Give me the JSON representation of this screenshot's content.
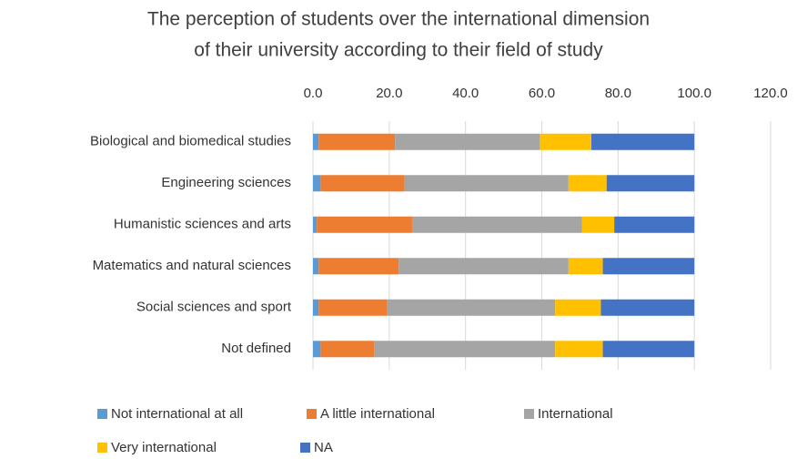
{
  "chart_data": {
    "type": "stacked-barh",
    "title": [
      "The perception of students over the international dimension",
      "of their university according to their field of study"
    ],
    "categories": [
      "Biological and biomedical studies",
      "Engineering sciences",
      "Humanistic sciences and arts",
      "Matematics and natural sciences",
      "Social sciences and sport",
      "Not defined"
    ],
    "series": [
      {
        "name": "Not international at all",
        "color": "#5b9bd5",
        "values": [
          1.5,
          2,
          1,
          1.5,
          1.5,
          2
        ]
      },
      {
        "name": "A little international",
        "color": "#ed7d31",
        "values": [
          20,
          22,
          25,
          21,
          18,
          14
        ]
      },
      {
        "name": "International",
        "color": "#a5a5a5",
        "values": [
          38,
          43,
          44.5,
          44.5,
          44,
          47.5
        ]
      },
      {
        "name": "Very international",
        "color": "#ffc000",
        "values": [
          13.5,
          10,
          8.5,
          9,
          12,
          12.5
        ]
      },
      {
        "name": "NA",
        "color": "#4472c4",
        "values": [
          27,
          23,
          21,
          24,
          24.5,
          24
        ]
      }
    ],
    "xlim": [
      0,
      120
    ],
    "xticks": [
      {
        "value": 0,
        "label": "0.0"
      },
      {
        "value": 20,
        "label": "20.0"
      },
      {
        "value": 40,
        "label": "40.0"
      },
      {
        "value": 60,
        "label": "60.0"
      },
      {
        "value": 80,
        "label": "80.0"
      },
      {
        "value": 100,
        "label": "100.0"
      },
      {
        "value": 120,
        "label": "120.0"
      }
    ],
    "grid": true
  }
}
